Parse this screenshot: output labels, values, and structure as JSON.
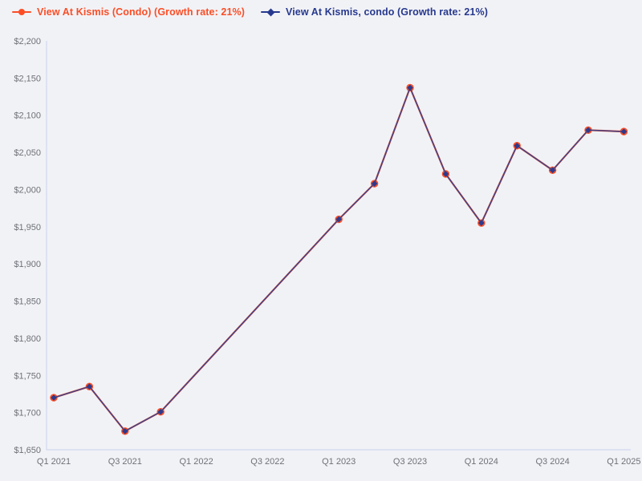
{
  "legend": {
    "items": [
      {
        "label": "View At Kismis (Condo) (Growth rate: 21%)",
        "color": "#FB4E26",
        "marker": "circle"
      },
      {
        "label": "View At Kismis, condo (Growth rate: 21%)",
        "color": "#27398E",
        "marker": "diamond"
      }
    ]
  },
  "chart_data": {
    "type": "line",
    "title": "",
    "xlabel": "",
    "ylabel": "",
    "legend_position": "top-left",
    "grid": false,
    "background_color": "#F1F2F6",
    "axis_color": "#C9D3EE",
    "tick_text_color": "#6E7177",
    "ylim": [
      1650,
      2200
    ],
    "x_quarters_total": 16,
    "x": [
      "Q1 2021",
      "Q2 2021",
      "Q3 2021",
      "Q4 2021",
      "Q1 2023",
      "Q2 2023",
      "Q3 2023",
      "Q4 2023",
      "Q1 2024",
      "Q2 2024",
      "Q3 2024",
      "Q4 2024",
      "Q1 2025"
    ],
    "x_quarter_index": [
      0,
      1,
      2,
      3,
      8,
      9,
      10,
      11,
      12,
      13,
      14,
      15,
      16
    ],
    "series": [
      {
        "name": "View At Kismis (Condo) (Growth rate: 21%)",
        "color": "#FB4E26",
        "marker": "circle",
        "values": [
          1720,
          1735,
          1675,
          1701,
          1960,
          2008,
          2137,
          2021,
          1955,
          2059,
          2026,
          2080,
          2078
        ]
      },
      {
        "name": "View At Kismis, condo (Growth rate: 21%)",
        "color": "#2E3A8C",
        "line_color": "#3E4489",
        "marker": "diamond",
        "values": [
          1720,
          1735,
          1675,
          1701,
          1960,
          2008,
          2137,
          2021,
          1955,
          2059,
          2026,
          2080,
          2078
        ]
      }
    ],
    "y_ticks": [
      {
        "value": 2200,
        "label": "$2,200"
      },
      {
        "value": 2150,
        "label": "$2,150"
      },
      {
        "value": 2100,
        "label": "$2,100"
      },
      {
        "value": 2050,
        "label": "$2,050"
      },
      {
        "value": 2000,
        "label": "$2,000"
      },
      {
        "value": 1950,
        "label": "$1,950"
      },
      {
        "value": 1900,
        "label": "$1,900"
      },
      {
        "value": 1850,
        "label": "$1,850"
      },
      {
        "value": 1800,
        "label": "$1,800"
      },
      {
        "value": 1750,
        "label": "$1,750"
      },
      {
        "value": 1700,
        "label": "$1,700"
      },
      {
        "value": 1650,
        "label": "$1,650"
      }
    ],
    "x_ticks": [
      {
        "q": 0,
        "label": "Q1 2021"
      },
      {
        "q": 2,
        "label": "Q3 2021"
      },
      {
        "q": 4,
        "label": "Q1 2022"
      },
      {
        "q": 6,
        "label": "Q3 2022"
      },
      {
        "q": 8,
        "label": "Q1 2023"
      },
      {
        "q": 10,
        "label": "Q3 2023"
      },
      {
        "q": 12,
        "label": "Q1 2024"
      },
      {
        "q": 14,
        "label": "Q3 2024"
      },
      {
        "q": 16,
        "label": "Q1 2025"
      }
    ]
  }
}
